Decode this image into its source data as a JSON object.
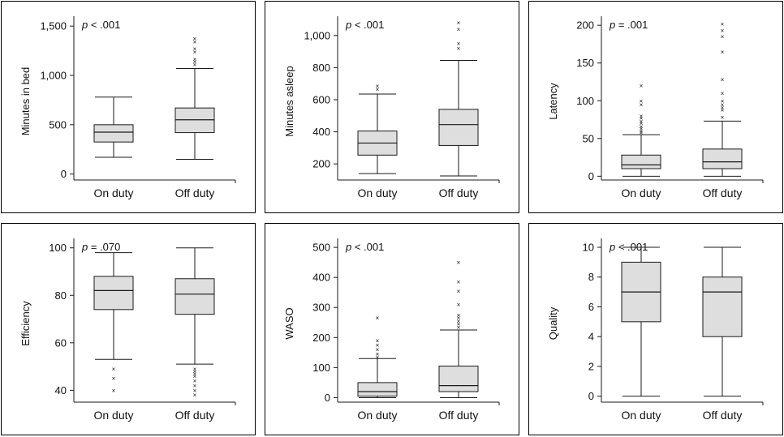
{
  "colors": {
    "box_fill": "#dedede",
    "stroke": "#1a1a1a",
    "outlier": "#1a1a1a",
    "background": "#ffffff"
  },
  "chart_data": [
    {
      "type": "box",
      "ylabel": "Minutes in bed",
      "p_italic": "p",
      "p_rest": " < .001",
      "ylim": [
        -60,
        1600
      ],
      "yticks": [
        0,
        500,
        1000,
        1500
      ],
      "ytick_labels": [
        "0",
        "500",
        "1,000",
        "1,500"
      ],
      "categories": [
        "On duty",
        "Off duty"
      ],
      "boxes": [
        {
          "whisker_low": 170,
          "q1": 325,
          "median": 425,
          "q3": 500,
          "whisker_high": 780,
          "outliers": []
        },
        {
          "whisker_low": 150,
          "q1": 420,
          "median": 550,
          "q3": 670,
          "whisker_high": 1070,
          "outliers": [
            1110,
            1140,
            1165,
            1240,
            1270,
            1340,
            1375
          ]
        }
      ]
    },
    {
      "type": "box",
      "ylabel": "Minutes asleep",
      "p_italic": "p",
      "p_rest": " < .001",
      "ylim": [
        100,
        1120
      ],
      "yticks": [
        200,
        400,
        600,
        800,
        1000
      ],
      "ytick_labels": [
        "200",
        "400",
        "600",
        "800",
        "1,000"
      ],
      "categories": [
        "On duty",
        "Off duty"
      ],
      "boxes": [
        {
          "whisker_low": 140,
          "q1": 255,
          "median": 330,
          "q3": 405,
          "whisker_high": 635,
          "outliers": [
            665,
            685
          ]
        },
        {
          "whisker_low": 125,
          "q1": 315,
          "median": 445,
          "q3": 540,
          "whisker_high": 845,
          "outliers": [
            920,
            950,
            1040,
            1080
          ]
        }
      ]
    },
    {
      "type": "box",
      "ylabel": "Latency",
      "p_italic": "p",
      "p_rest": " = .001",
      "ylim": [
        -5,
        212
      ],
      "yticks": [
        0,
        50,
        100,
        150,
        200
      ],
      "ytick_labels": [
        "0",
        "50",
        "100",
        "150",
        "200"
      ],
      "categories": [
        "On duty",
        "Off duty"
      ],
      "boxes": [
        {
          "whisker_low": 0,
          "q1": 10,
          "median": 15,
          "q3": 28,
          "whisker_high": 55,
          "outliers": [
            58,
            60,
            63,
            66,
            70,
            73,
            77,
            80,
            95,
            100,
            120
          ]
        },
        {
          "whisker_low": 0,
          "q1": 10,
          "median": 19,
          "q3": 36,
          "whisker_high": 73,
          "outliers": [
            78,
            88,
            91,
            95,
            100,
            110,
            128,
            165,
            185,
            193,
            202
          ]
        }
      ]
    },
    {
      "type": "box",
      "ylabel": "Efficiency",
      "p_italic": "p",
      "p_rest": " = .070",
      "ylim": [
        35,
        104
      ],
      "yticks": [
        40,
        60,
        80,
        100
      ],
      "ytick_labels": [
        "40",
        "60",
        "80",
        "100"
      ],
      "categories": [
        "On duty",
        "Off duty"
      ],
      "boxes": [
        {
          "whisker_low": 53,
          "q1": 74,
          "median": 82,
          "q3": 88,
          "whisker_high": 98,
          "outliers": [
            49,
            45,
            40
          ]
        },
        {
          "whisker_low": 51,
          "q1": 72,
          "median": 80.5,
          "q3": 87,
          "whisker_high": 100,
          "outliers": [
            49,
            48,
            47,
            46,
            44,
            42,
            40,
            38
          ]
        }
      ]
    },
    {
      "type": "box",
      "ylabel": "WASO",
      "p_italic": "p",
      "p_rest": " < .001",
      "ylim": [
        -15,
        530
      ],
      "yticks": [
        0,
        100,
        200,
        300,
        400,
        500
      ],
      "ytick_labels": [
        "0",
        "100",
        "200",
        "300",
        "400",
        "500"
      ],
      "categories": [
        "On duty",
        "Off duty"
      ],
      "boxes": [
        {
          "whisker_low": 0,
          "q1": 5,
          "median": 20,
          "q3": 50,
          "whisker_high": 130,
          "outliers": [
            135,
            145,
            160,
            175,
            190,
            265
          ]
        },
        {
          "whisker_low": 0,
          "q1": 20,
          "median": 40,
          "q3": 105,
          "whisker_high": 225,
          "outliers": [
            235,
            245,
            255,
            265,
            275,
            310,
            355,
            385,
            450
          ]
        }
      ]
    },
    {
      "type": "box",
      "ylabel": "Quality",
      "p_italic": "p",
      "p_rest": " < .001",
      "ylim": [
        -0.4,
        10.6
      ],
      "yticks": [
        0,
        2,
        4,
        6,
        8,
        10
      ],
      "ytick_labels": [
        "0",
        "2",
        "4",
        "6",
        "8",
        "10"
      ],
      "categories": [
        "On duty",
        "Off duty"
      ],
      "boxes": [
        {
          "whisker_low": 0,
          "q1": 5,
          "median": 7,
          "q3": 9,
          "whisker_high": 10,
          "outliers": []
        },
        {
          "whisker_low": 0,
          "q1": 4,
          "median": 7,
          "q3": 8,
          "whisker_high": 10,
          "outliers": []
        }
      ]
    }
  ]
}
